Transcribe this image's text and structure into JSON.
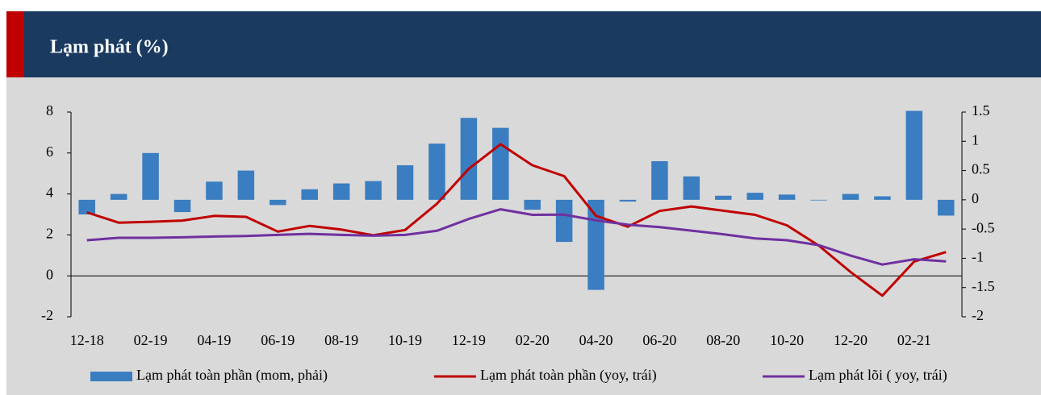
{
  "chart_data": {
    "type": "bar",
    "title": "Lạm phát (%)",
    "categories": [
      "12-18",
      null,
      "02-19",
      null,
      "04-19",
      null,
      "06-19",
      null,
      "08-19",
      null,
      "10-19",
      null,
      "12-19",
      null,
      "02-20",
      null,
      "04-20",
      null,
      "06-20",
      null,
      "08-20",
      null,
      "10-20",
      null,
      "12-20",
      null,
      "02-21",
      null
    ],
    "series": [
      {
        "name": "Lạm phát toàn phần (mom, phải)",
        "type": "bar",
        "axis": "y2",
        "color": "#3a7dc0",
        "values": [
          -0.25,
          0.1,
          0.8,
          -0.21,
          0.31,
          0.5,
          -0.09,
          0.18,
          0.28,
          0.32,
          0.59,
          0.96,
          1.4,
          1.23,
          -0.17,
          -0.72,
          -1.54,
          -0.03,
          0.66,
          0.4,
          0.07,
          0.12,
          0.09,
          -0.01,
          0.1,
          0.06,
          1.52,
          -0.27
        ]
      },
      {
        "name": "Lạm phát toàn phần (yoy, trái)",
        "type": "line",
        "color": "#c00000",
        "values": [
          3.1,
          2.6,
          2.64,
          2.7,
          2.93,
          2.88,
          2.16,
          2.44,
          2.26,
          1.98,
          2.24,
          3.52,
          5.23,
          6.43,
          5.4,
          4.87,
          2.93,
          2.4,
          3.17,
          3.39,
          3.18,
          2.98,
          2.47,
          1.48,
          0.19,
          -0.97,
          0.7,
          1.16
        ]
      },
      {
        "name": "Lạm phát lõi ( yoy, trái)",
        "type": "line",
        "color": "#7030a0",
        "values": [
          1.74,
          1.86,
          1.86,
          1.88,
          1.92,
          1.95,
          2.0,
          2.05,
          2.0,
          1.96,
          2.0,
          2.2,
          2.78,
          3.25,
          2.98,
          2.99,
          2.71,
          2.5,
          2.38,
          2.21,
          2.03,
          1.83,
          1.74,
          1.5,
          0.99,
          0.55,
          0.81,
          0.71
        ]
      }
    ],
    "ylim": [
      -2,
      8
    ],
    "yticks": [
      8,
      6,
      4,
      2,
      0,
      -2
    ],
    "y2lim": [
      -2,
      1.5
    ],
    "y2ticks": [
      1.5,
      1,
      0.5,
      0,
      -0.5,
      -1,
      -1.5,
      -2
    ]
  }
}
